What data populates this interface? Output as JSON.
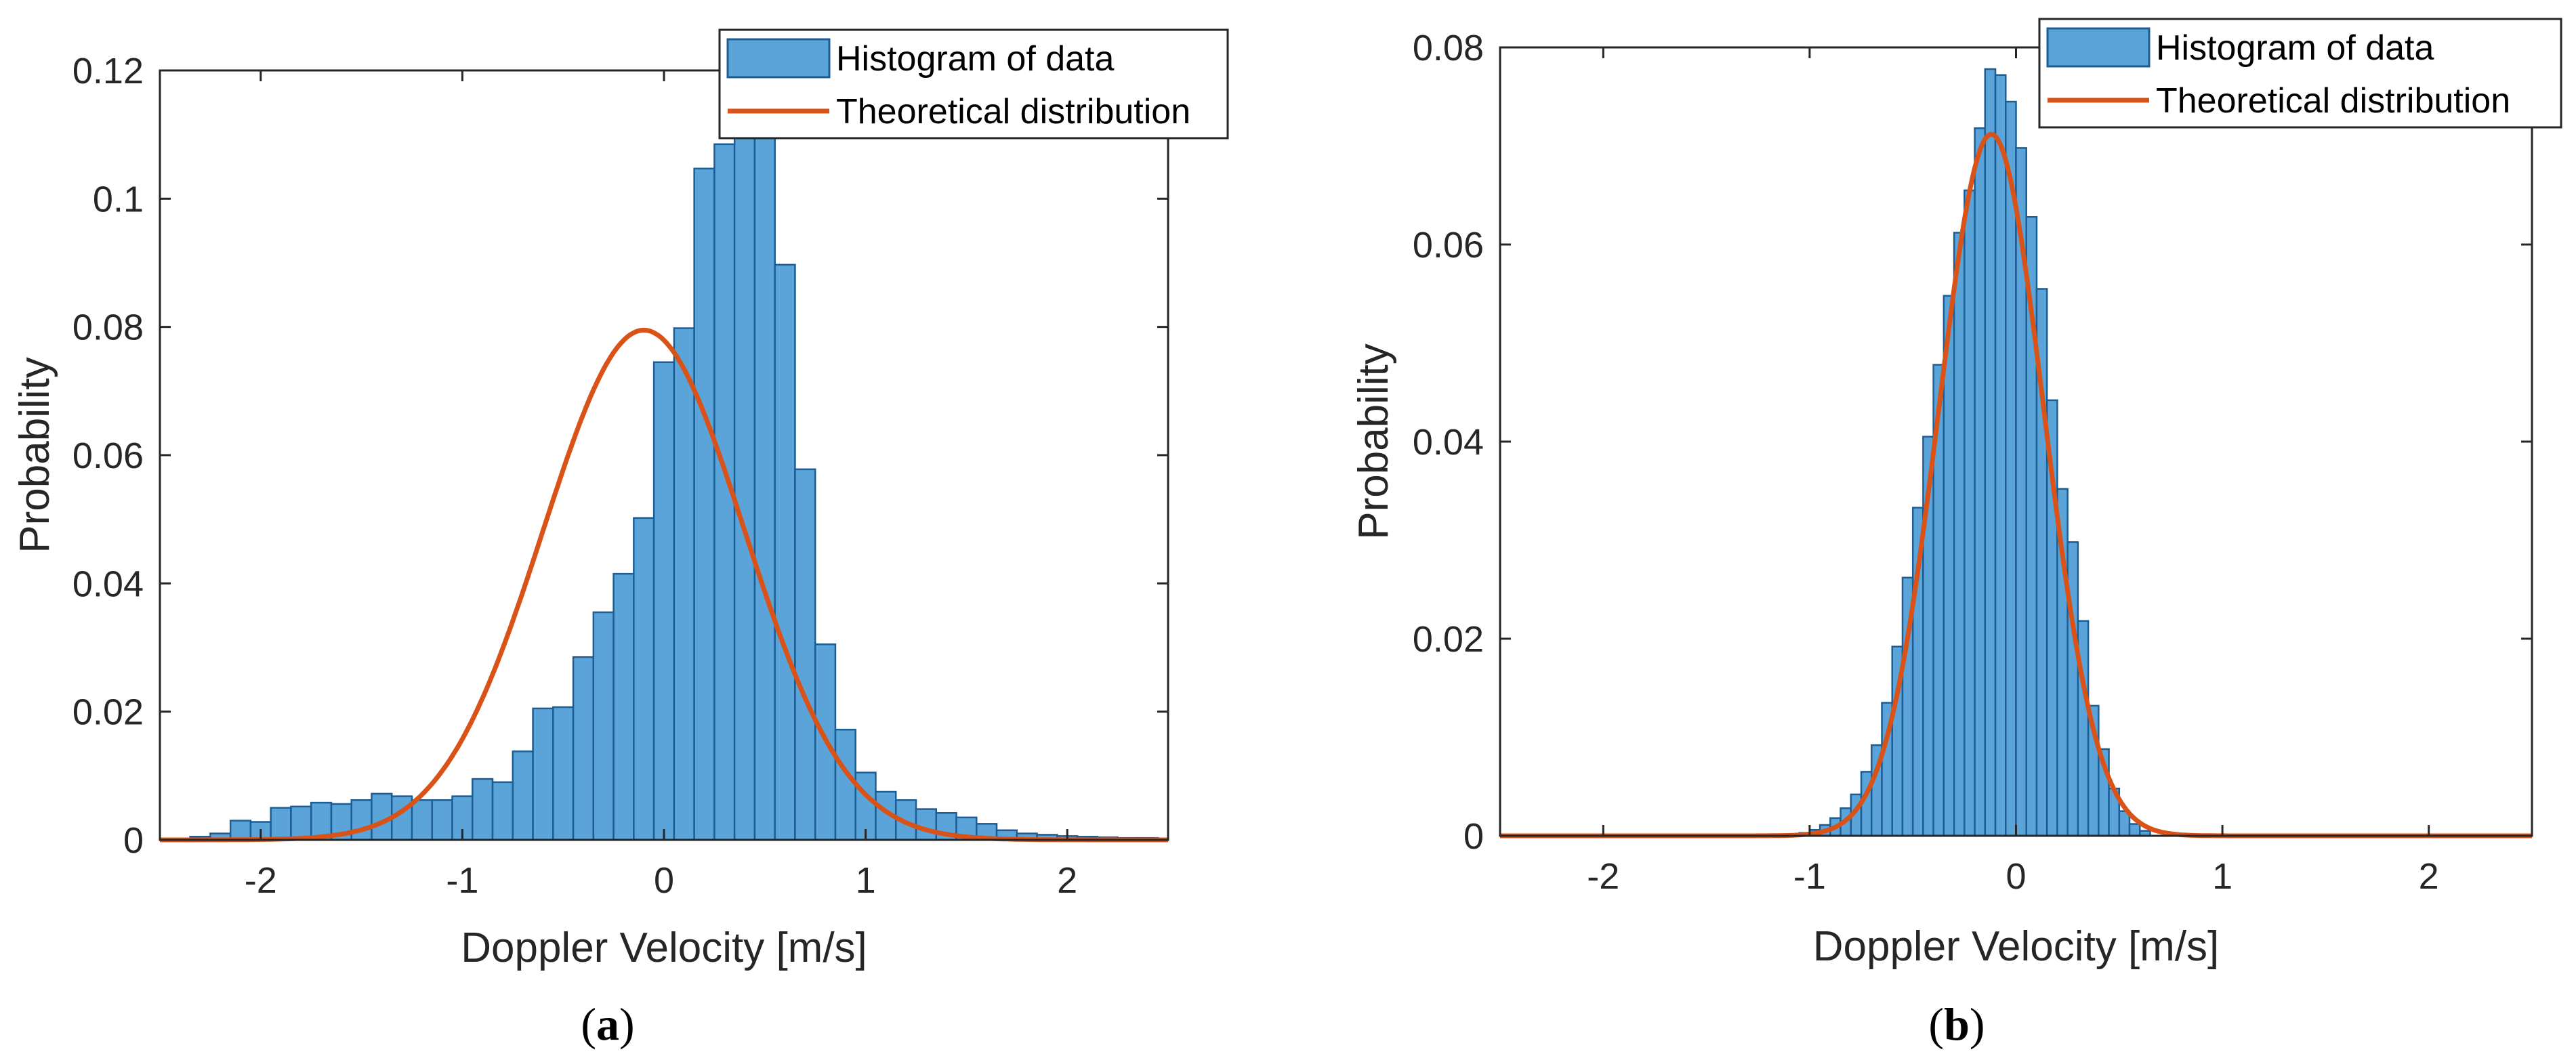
{
  "chart_data": [
    {
      "type": "bar",
      "panel_label": "a",
      "xlabel": "Doppler  Velocity  [m/s]",
      "ylabel": "Probability",
      "xlim": [
        -2.5,
        2.5
      ],
      "ylim": [
        0,
        0.12
      ],
      "xticks": [
        "-2",
        "-1",
        "0",
        "1",
        "2"
      ],
      "yticks": [
        "0",
        "0.02",
        "0.04",
        "0.06",
        "0.08",
        "0.1",
        "0.12"
      ],
      "bin_width": 0.1,
      "bin_start": -2.35,
      "values": [
        0.0005,
        0.001,
        0.003,
        0.0028,
        0.005,
        0.0052,
        0.0058,
        0.0056,
        0.0062,
        0.0072,
        0.0068,
        0.0062,
        0.0062,
        0.0068,
        0.0095,
        0.009,
        0.0138,
        0.0205,
        0.0207,
        0.0285,
        0.0355,
        0.0415,
        0.0502,
        0.0745,
        0.0798,
        0.1047,
        0.1085,
        0.1205,
        0.1105,
        0.0897,
        0.0578,
        0.0305,
        0.0172,
        0.0105,
        0.0075,
        0.0062,
        0.0048,
        0.0042,
        0.0035,
        0.0025,
        0.0015,
        0.001,
        0.0008,
        0.0006,
        0.0005,
        0.0004,
        0.0003,
        0.0003
      ],
      "fit": {
        "mu": -0.1,
        "sigma": 0.5,
        "peak": 0.0795,
        "name": "Theoretical distribution"
      },
      "legend": [
        "Histogram of data",
        "Theoretical distribution"
      ],
      "legend_position": "top-right"
    },
    {
      "type": "bar",
      "panel_label": "b",
      "xlabel": "Doppler  Velocity  [m/s]",
      "ylabel": "Probability",
      "xlim": [
        -2.5,
        2.5
      ],
      "ylim": [
        0,
        0.08
      ],
      "xticks": [
        "-2",
        "-1",
        "0",
        "1",
        "2"
      ],
      "yticks": [
        "0",
        "0.02",
        "0.04",
        "0.06",
        "0.08"
      ],
      "bin_width": 0.05,
      "bin_start": -1.05,
      "values": [
        0.0003,
        0.0006,
        0.0011,
        0.0018,
        0.0028,
        0.0042,
        0.0065,
        0.0092,
        0.0135,
        0.0192,
        0.0262,
        0.0333,
        0.0405,
        0.0478,
        0.0548,
        0.0612,
        0.0655,
        0.0718,
        0.0778,
        0.0772,
        0.0745,
        0.0698,
        0.0628,
        0.0555,
        0.0442,
        0.0352,
        0.0298,
        0.0218,
        0.0132,
        0.0088,
        0.0048,
        0.0025,
        0.0012,
        0.0005
      ],
      "fit": {
        "mu": -0.12,
        "sigma": 0.255,
        "peak": 0.0712,
        "name": "Theoretical distribution"
      },
      "legend": [
        "Histogram of data",
        "Theoretical distribution"
      ],
      "legend_position": "top-right"
    }
  ],
  "colors": {
    "bar_fill": "#5aa4da",
    "bar_edge": "#1c5e94",
    "fit_line": "#d95319",
    "axis": "#262626"
  }
}
